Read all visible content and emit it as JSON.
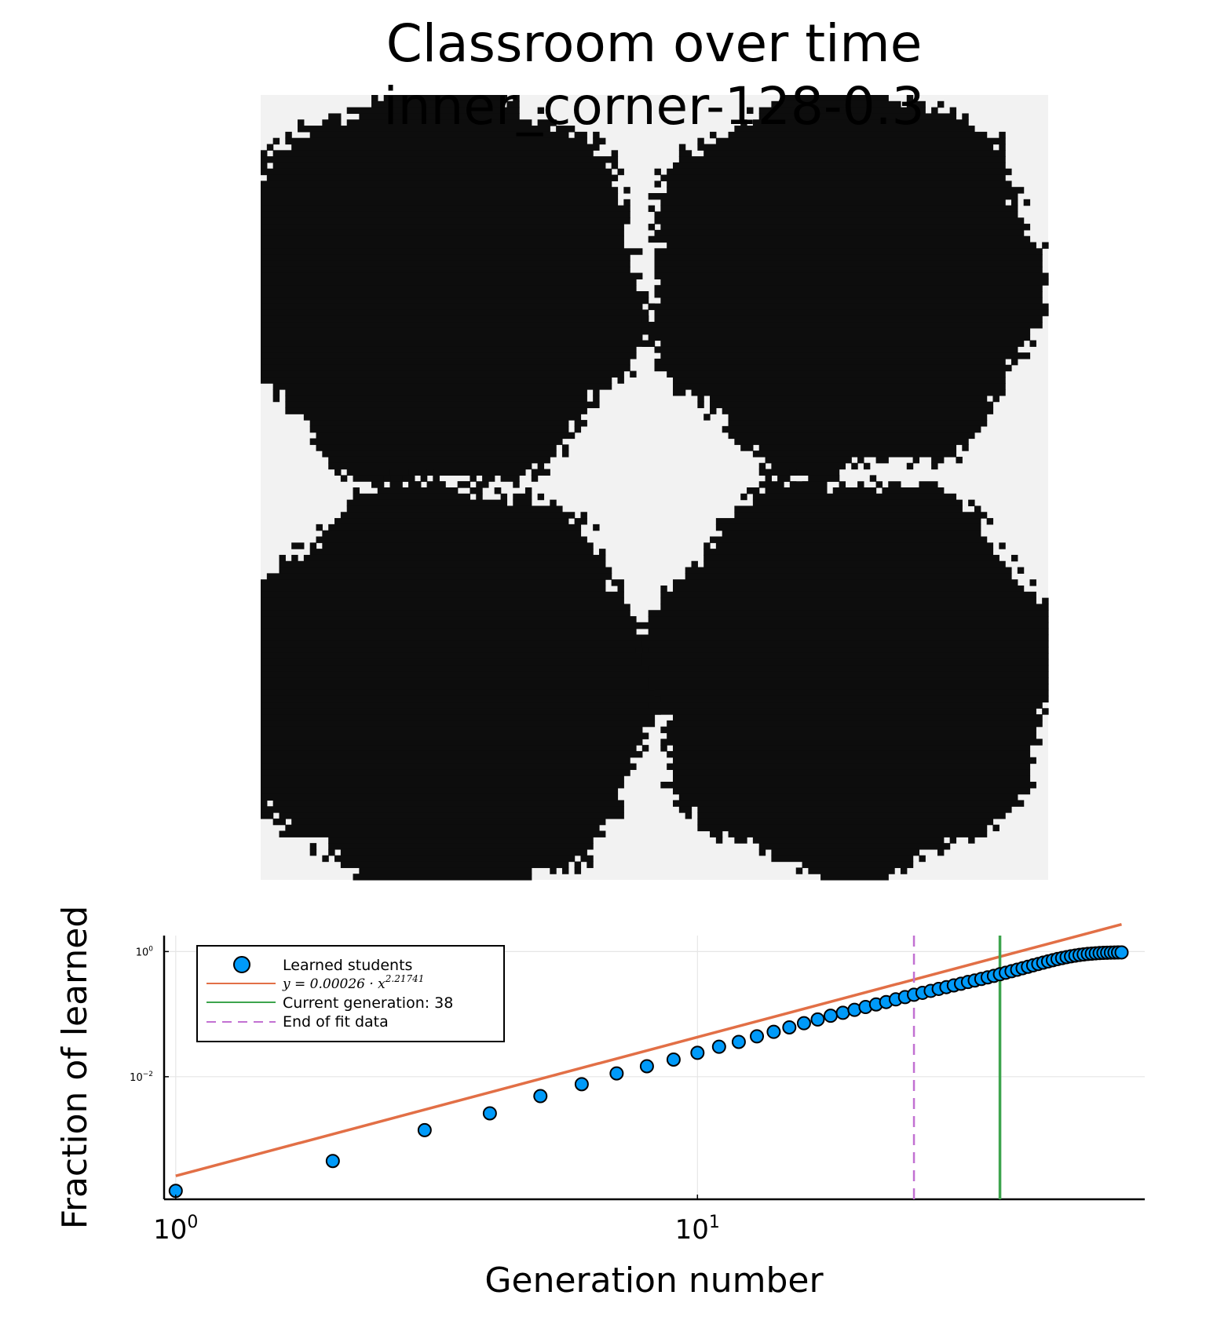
{
  "title": {
    "line1": "Classroom over time",
    "line2": "inner_corner-128-0.3"
  },
  "colors": {
    "background": "#ffffff",
    "grid_empty": "#f2f2f2",
    "grid_filled": "#0d0d0d",
    "scatter": "#009af9",
    "fit_line": "#e26f46",
    "current_generation": "#3da44d",
    "end_of_fit": "#c271d2",
    "gridline": "#e6e6e6"
  },
  "heatmap": {
    "size": 128,
    "blobs": [
      {
        "cx": 29,
        "cy": 31,
        "r": 33
      },
      {
        "cx": 95,
        "cy": 30,
        "r": 32
      },
      {
        "cx": 30,
        "cy": 97,
        "r": 34
      },
      {
        "cx": 96,
        "cy": 95,
        "r": 33
      }
    ]
  },
  "chart_data": {
    "type": "scatter",
    "xscale": "log",
    "yscale": "log",
    "xlabel": "Generation number",
    "ylabel": "Fraction of learned",
    "xlim": [
      0.95,
      72
    ],
    "ylim": [
      0.00011,
      1.8
    ],
    "xticks": [
      {
        "value": 1,
        "base": "10",
        "exp": "0"
      },
      {
        "value": 10,
        "base": "10",
        "exp": "1"
      }
    ],
    "yticks": [
      {
        "value": 1,
        "base": "10",
        "exp": "0"
      },
      {
        "value": 0.01,
        "base": "10",
        "exp": "−2"
      }
    ],
    "grid": true,
    "legend_position": "top-left",
    "series": [
      {
        "name": "Learned students",
        "type": "scatter",
        "x": [
          1,
          2,
          3,
          4,
          5,
          6,
          7,
          8,
          9,
          10,
          11,
          12,
          13,
          14,
          15,
          16,
          17,
          18,
          19,
          20,
          21,
          22,
          23,
          24,
          25,
          26,
          27,
          28,
          29,
          30,
          31,
          32,
          33,
          34,
          35,
          36,
          37,
          38,
          39,
          40,
          41,
          42,
          43,
          44,
          45,
          46,
          47,
          48,
          49,
          50,
          51,
          52,
          53,
          54,
          55,
          56,
          57,
          58,
          59,
          60,
          61,
          62,
          63,
          64,
          65
        ],
        "y": [
          0.00015,
          0.00045,
          0.0014,
          0.0026,
          0.0049,
          0.0076,
          0.0113,
          0.0147,
          0.0188,
          0.0241,
          0.0301,
          0.036,
          0.0442,
          0.0521,
          0.0614,
          0.0716,
          0.0822,
          0.0942,
          0.105,
          0.117,
          0.13,
          0.143,
          0.156,
          0.172,
          0.187,
          0.204,
          0.219,
          0.235,
          0.253,
          0.27,
          0.288,
          0.306,
          0.326,
          0.345,
          0.365,
          0.387,
          0.409,
          0.434,
          0.459,
          0.485,
          0.513,
          0.542,
          0.572,
          0.602,
          0.633,
          0.664,
          0.696,
          0.728,
          0.759,
          0.788,
          0.815,
          0.84,
          0.863,
          0.883,
          0.9,
          0.915,
          0.927,
          0.938,
          0.946,
          0.953,
          0.958,
          0.962,
          0.965,
          0.967,
          0.969
        ]
      },
      {
        "name": "y = 0.00026 · x^2.21741",
        "label_base": "y = 0.00026 · x",
        "label_exp": "2.21741",
        "type": "line",
        "a": 0.00026,
        "b": 2.21741,
        "x_range": [
          1,
          65
        ]
      },
      {
        "name": "Current generation: 38",
        "type": "vline",
        "x": 38
      },
      {
        "name": "End of fit data",
        "type": "vline-dashed",
        "x": 26
      }
    ]
  }
}
